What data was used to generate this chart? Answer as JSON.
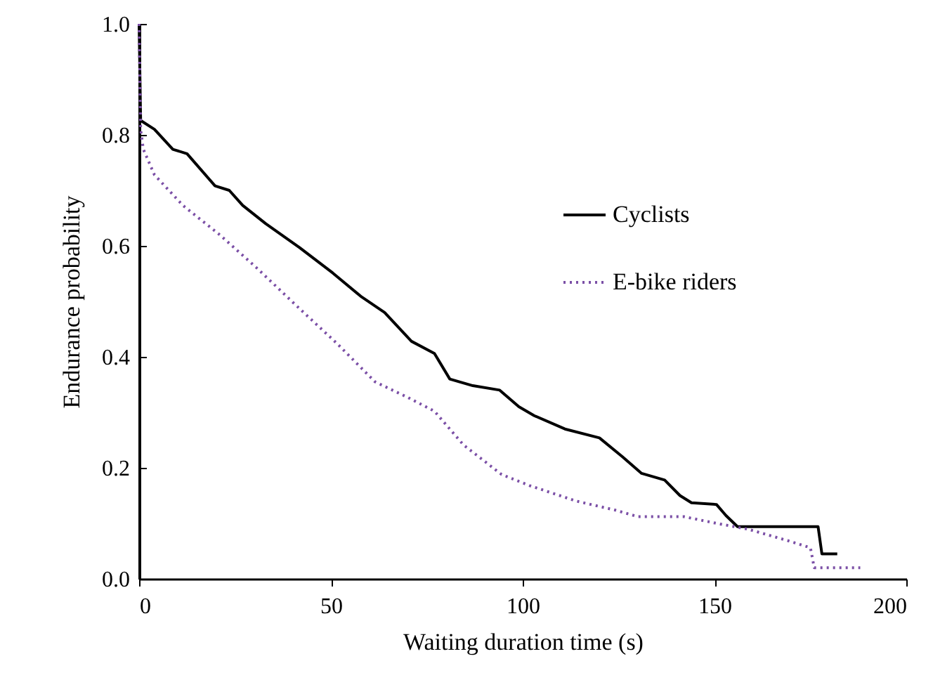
{
  "chart_data": {
    "type": "line",
    "xlabel": "Waiting duration time (s)",
    "ylabel": "Endurance probability",
    "xlim": [
      0,
      200
    ],
    "xticks": [
      0,
      50,
      100,
      150,
      200
    ],
    "ylim": [
      0,
      1
    ],
    "yticks": [
      {
        "value": 0,
        "label": "0.0"
      },
      {
        "value": 0.2,
        "label": "0.2"
      },
      {
        "value": 0.4,
        "label": "0.4"
      },
      {
        "value": 0.6,
        "label": "0.6"
      },
      {
        "value": 0.8,
        "label": "0.8"
      },
      {
        "value": 1,
        "label": "1.0"
      }
    ],
    "grid": false,
    "legend": "top right",
    "marker": "none",
    "series": [
      {
        "name": "Cyclists",
        "color": "#000000",
        "line_style": "solid",
        "x": [
          0,
          0.4,
          4,
          8.8,
          12.5,
          19.8,
          23.5,
          27,
          33,
          41.8,
          50.5,
          58,
          64,
          71,
          77,
          81,
          87,
          94,
          99,
          103,
          111,
          120,
          126,
          131,
          137,
          141,
          144,
          150.5,
          153,
          156,
          177,
          178,
          182
        ],
        "values": [
          1.0,
          0.826,
          0.81,
          0.774,
          0.766,
          0.708,
          0.7,
          0.673,
          0.64,
          0.597,
          0.551,
          0.508,
          0.48,
          0.428,
          0.406,
          0.36,
          0.348,
          0.34,
          0.31,
          0.294,
          0.27,
          0.254,
          0.22,
          0.19,
          0.178,
          0.15,
          0.137,
          0.134,
          0.114,
          0.094,
          0.094,
          0.045,
          0.045
        ]
      },
      {
        "name": "E-bike riders",
        "color": "#7b4fa6",
        "line_style": "dotted",
        "x": [
          0,
          0.4,
          1.1,
          4,
          11.4,
          21,
          31,
          41.8,
          51.6,
          61.5,
          70,
          77,
          84.6,
          94.5,
          101.8,
          114,
          124,
          130,
          142,
          150.5,
          159,
          169,
          175,
          176,
          188
        ],
        "values": [
          1.0,
          0.81,
          0.774,
          0.728,
          0.673,
          0.62,
          0.558,
          0.487,
          0.424,
          0.355,
          0.327,
          0.302,
          0.241,
          0.188,
          0.168,
          0.14,
          0.124,
          0.112,
          0.112,
          0.1,
          0.089,
          0.069,
          0.056,
          0.02,
          0.02
        ]
      }
    ]
  }
}
